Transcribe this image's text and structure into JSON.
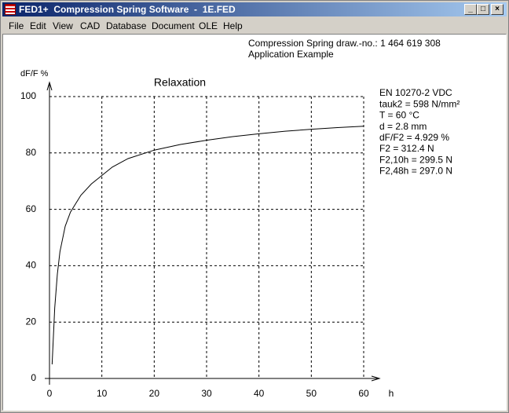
{
  "window": {
    "title": "FED1+  Compression Spring Software  -  1E.FED"
  },
  "menu": [
    "File",
    "Edit",
    "View",
    "CAD",
    "Database",
    "Document",
    "OLE",
    "Help"
  ],
  "header": [
    "Compression Spring   draw.-no.: 1 464 619 308",
    "Application Example"
  ],
  "info": [
    "EN 10270-2 VDC",
    "tauk2 = 598 N/mm²",
    "T = 60 °C",
    "d = 2.8 mm",
    "dF/F2 = 4.929 %",
    "F2 = 312.4 N",
    "F2,10h = 299.5 N",
    "F2,48h = 297.0 N"
  ],
  "chart_data": {
    "type": "line",
    "title": "Relaxation",
    "y_label": "dF/F %",
    "x_label": "h",
    "x": [
      0.5,
      1,
      1.5,
      2,
      3,
      4,
      5,
      6,
      8,
      10,
      12,
      15,
      20,
      25,
      30,
      35,
      40,
      45,
      50,
      55,
      60
    ],
    "values": [
      5,
      25,
      37,
      45,
      54,
      59,
      62,
      65,
      69,
      72,
      75,
      78,
      81,
      83,
      84.5,
      85.8,
      86.8,
      87.7,
      88.4,
      89,
      89.5
    ],
    "color": "#000000",
    "xlim": [
      0,
      60
    ],
    "xticks": [
      0,
      10,
      20,
      30,
      40,
      50,
      60
    ],
    "ylim": [
      0,
      100
    ],
    "yticks": [
      0,
      20,
      40,
      60,
      80,
      100
    ],
    "grid": true
  }
}
